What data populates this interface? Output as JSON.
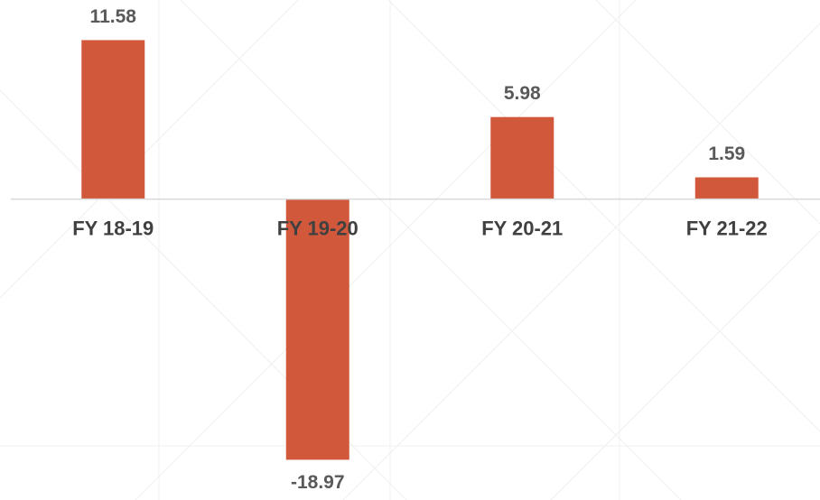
{
  "chart_data": {
    "type": "bar",
    "categories": [
      "FY 18-19",
      "FY 19-20",
      "FY 20-21",
      "FY 21-22"
    ],
    "values": [
      11.58,
      -18.97,
      5.98,
      1.59
    ],
    "color": "#d2583c",
    "ylim": [
      -21.9,
      14.5
    ]
  }
}
